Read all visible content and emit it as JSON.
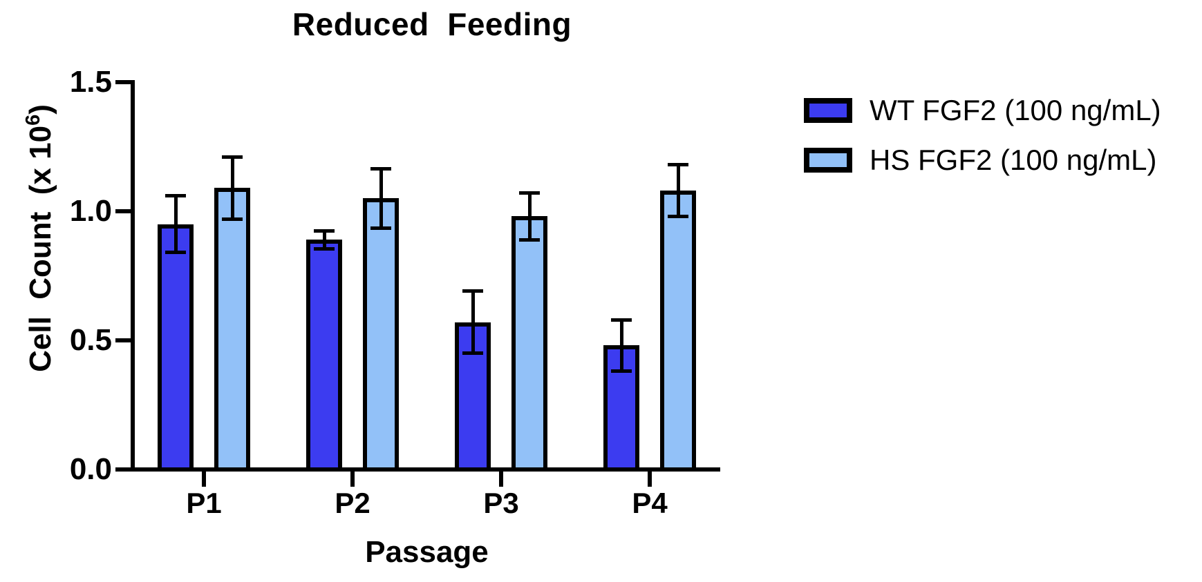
{
  "title": "Reduced  Feeding",
  "chart_data": {
    "type": "bar",
    "title": "Reduced  Feeding",
    "xlabel": "Passage",
    "ylabel": "Cell Count (x 10⁶)",
    "ylabel_parts": {
      "prefix": "Cell  Count  (x 10",
      "sup": "6",
      "suffix": ")"
    },
    "categories": [
      "P1",
      "P2",
      "P3",
      "P4"
    ],
    "series": [
      {
        "name": "WT FGF2 (100 ng/mL)",
        "color": "#3C3CF0",
        "values": [
          0.95,
          0.89,
          0.57,
          0.48
        ],
        "errors": [
          0.11,
          0.035,
          0.12,
          0.1
        ]
      },
      {
        "name": "HS FGF2 (100 ng/mL)",
        "color": "#92C1F8",
        "values": [
          1.09,
          1.05,
          0.98,
          1.08
        ],
        "errors": [
          0.12,
          0.115,
          0.09,
          0.1
        ]
      }
    ],
    "ylim": [
      0,
      1.5
    ],
    "yticks": [
      0,
      0.5,
      1.0,
      1.5
    ],
    "ytick_labels": [
      "0.0",
      "0.5",
      "1.0",
      "1.5"
    ],
    "grid": false,
    "error_bars": true,
    "legend_position": "top-right",
    "colors": {
      "axis": "#000000",
      "background": "#ffffff"
    }
  }
}
